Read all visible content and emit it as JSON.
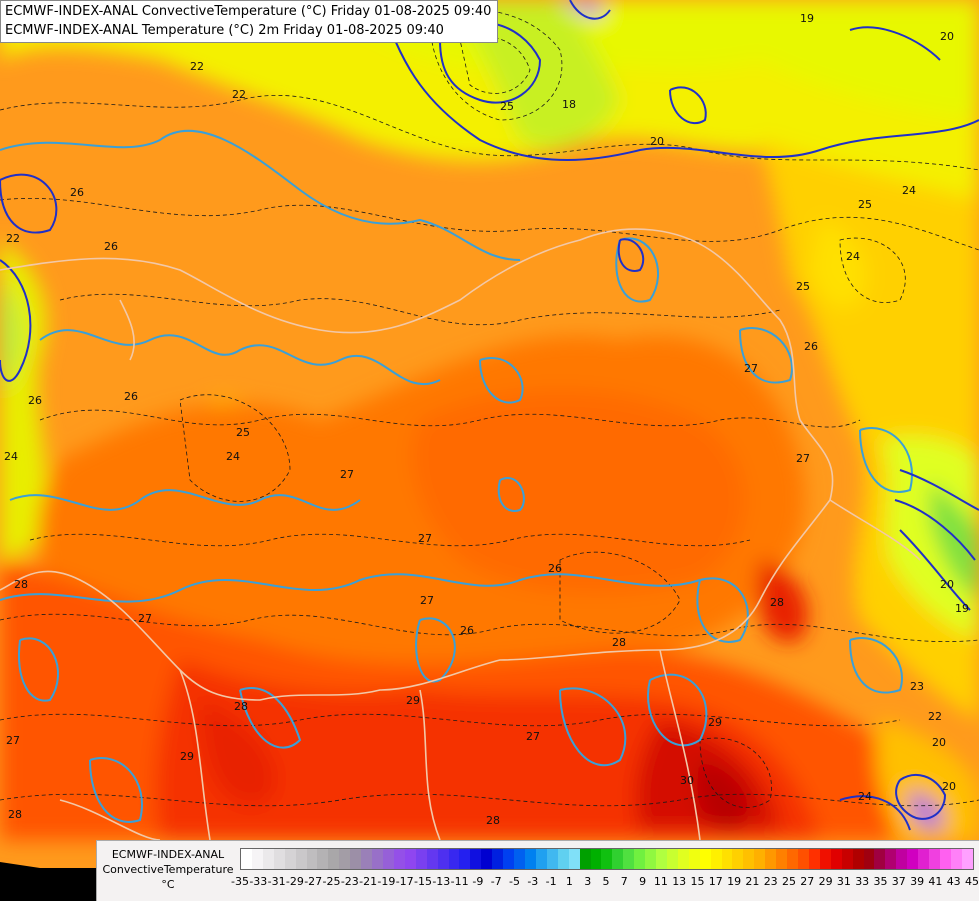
{
  "titles": {
    "line1": "ECMWF-INDEX-ANAL ConvectiveTemperature (°C) Friday 01-08-2025 09:40",
    "line2": "ECMWF-INDEX-ANAL Temperature (°C) 2m Friday 01-08-2025 09:40"
  },
  "legend": {
    "title_line1": "ECMWF-INDEX-ANAL",
    "title_line2": "ConvectiveTemperature",
    "title_line3": "°C",
    "ticks": [
      "-35",
      "-33",
      "-31",
      "-29",
      "-27",
      "-25",
      "-23",
      "-21",
      "-19",
      "-17",
      "-15",
      "-13",
      "-11",
      "-9",
      "-7",
      "-5",
      "-3",
      "-1",
      "1",
      "3",
      "5",
      "7",
      "9",
      "11",
      "13",
      "15",
      "17",
      "19",
      "21",
      "23",
      "25",
      "27",
      "29",
      "31",
      "33",
      "35",
      "37",
      "39",
      "41",
      "43",
      "45"
    ],
    "colors": [
      "#ffffff",
      "#f6f4f6",
      "#ebe9eb",
      "#e0dee0",
      "#d5d3d5",
      "#cac8ca",
      "#bfbdbf",
      "#b4b2b4",
      "#a9a7a9",
      "#a39da6",
      "#9c8fa7",
      "#9a80b8",
      "#9870c8",
      "#9660d8",
      "#9450e8",
      "#8f46f0",
      "#7a40f0",
      "#6438f0",
      "#4e30f0",
      "#3828f0",
      "#2420f0",
      "#1010e0",
      "#0000d0",
      "#0020e0",
      "#0040f0",
      "#0060f0",
      "#0080f0",
      "#20a0f0",
      "#40b8f0",
      "#60d0f0",
      "#80e0f8",
      "#00a000",
      "#00b000",
      "#10c010",
      "#30d030",
      "#50e040",
      "#70f040",
      "#90f840",
      "#b0ff40",
      "#c8ff30",
      "#e0ff20",
      "#f0ff10",
      "#ffff00",
      "#fff000",
      "#ffe000",
      "#ffd000",
      "#ffc000",
      "#ffb000",
      "#ff9800",
      "#ff8000",
      "#ff6800",
      "#ff5000",
      "#ff3000",
      "#f01000",
      "#e00000",
      "#c80000",
      "#b00000",
      "#a00010",
      "#a00040",
      "#b00070",
      "#c000a0",
      "#d000c0",
      "#e020d0",
      "#f040e0",
      "#ff60f0",
      "#ff80f8",
      "#ffa0ff"
    ]
  },
  "contour_labels": [
    "19",
    "20",
    "22",
    "22",
    "22",
    "25",
    "18",
    "20",
    "24",
    "25",
    "24",
    "25",
    "26",
    "26",
    "26",
    "26",
    "27",
    "25",
    "24",
    "24",
    "27",
    "27",
    "27",
    "26",
    "27",
    "26",
    "28",
    "28",
    "27",
    "28",
    "28",
    "29",
    "29",
    "30",
    "27",
    "28",
    "28",
    "23",
    "22",
    "20",
    "20",
    "24",
    "19",
    "20",
    "27",
    "26",
    "29"
  ]
}
